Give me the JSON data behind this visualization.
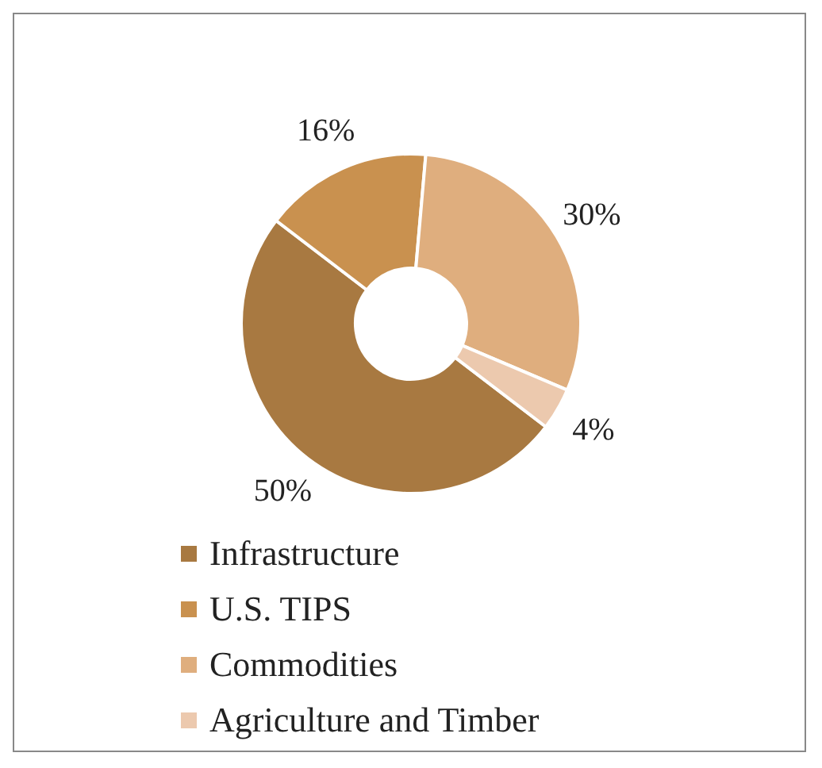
{
  "chart_data": {
    "type": "donut",
    "categories": [
      "Infrastructure",
      "U.S. TIPS",
      "Commodities",
      "Agriculture and Timber"
    ],
    "values": [
      50,
      16,
      30,
      4
    ],
    "colors": [
      "#a87941",
      "#c9914f",
      "#dfae7e",
      "#ecc9ae"
    ],
    "value_labels": [
      "50%",
      "16%",
      "30%",
      "4%"
    ],
    "legend": "bottom"
  }
}
